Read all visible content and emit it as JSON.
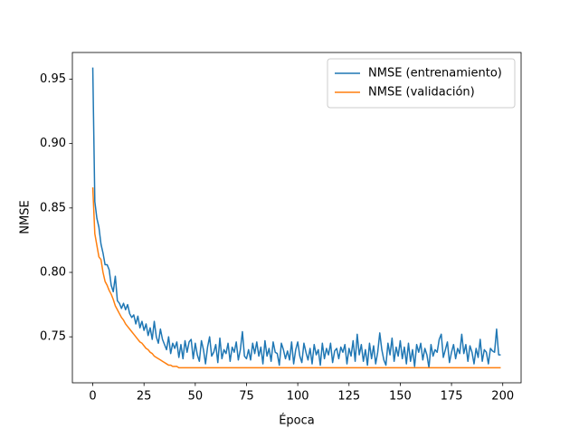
{
  "chart_data": {
    "type": "line",
    "xlabel": "Época",
    "ylabel": "NMSE",
    "xlim": [
      -9.95,
      208.95
    ],
    "ylim": [
      0.7143,
      0.9707
    ],
    "xticks": [
      0,
      25,
      50,
      75,
      100,
      125,
      150,
      175,
      200
    ],
    "yticks": [
      0.75,
      {
        "value": 0.8,
        "label": "0.80"
      },
      0.85,
      {
        "value": 0.9,
        "label": "0.90"
      },
      0.95
    ],
    "legend": "upper right",
    "x": [
      0,
      1,
      2,
      3,
      4,
      5,
      6,
      7,
      8,
      9,
      10,
      11,
      12,
      13,
      14,
      15,
      16,
      17,
      18,
      19,
      20,
      21,
      22,
      23,
      24,
      25,
      26,
      27,
      28,
      29,
      30,
      31,
      32,
      33,
      34,
      35,
      36,
      37,
      38,
      39,
      40,
      41,
      42,
      43,
      44,
      45,
      46,
      47,
      48,
      49,
      50,
      51,
      52,
      53,
      54,
      55,
      56,
      57,
      58,
      59,
      60,
      61,
      62,
      63,
      64,
      65,
      66,
      67,
      68,
      69,
      70,
      71,
      72,
      73,
      74,
      75,
      76,
      77,
      78,
      79,
      80,
      81,
      82,
      83,
      84,
      85,
      86,
      87,
      88,
      89,
      90,
      91,
      92,
      93,
      94,
      95,
      96,
      97,
      98,
      99,
      100,
      101,
      102,
      103,
      104,
      105,
      106,
      107,
      108,
      109,
      110,
      111,
      112,
      113,
      114,
      115,
      116,
      117,
      118,
      119,
      120,
      121,
      122,
      123,
      124,
      125,
      126,
      127,
      128,
      129,
      130,
      131,
      132,
      133,
      134,
      135,
      136,
      137,
      138,
      139,
      140,
      141,
      142,
      143,
      144,
      145,
      146,
      147,
      148,
      149,
      150,
      151,
      152,
      153,
      154,
      155,
      156,
      157,
      158,
      159,
      160,
      161,
      162,
      163,
      164,
      165,
      166,
      167,
      168,
      169,
      170,
      171,
      172,
      173,
      174,
      175,
      176,
      177,
      178,
      179,
      180,
      181,
      182,
      183,
      184,
      185,
      186,
      187,
      188,
      189,
      190,
      191,
      192,
      193,
      194,
      195,
      196,
      197,
      198,
      199
    ],
    "series": [
      {
        "name": "NMSE (entrenamiento)",
        "color": "#1f77b4",
        "values": [
          0.959,
          0.855,
          0.842,
          0.835,
          0.822,
          0.815,
          0.806,
          0.806,
          0.802,
          0.79,
          0.785,
          0.797,
          0.778,
          0.776,
          0.772,
          0.776,
          0.771,
          0.775,
          0.768,
          0.765,
          0.767,
          0.76,
          0.766,
          0.757,
          0.762,
          0.755,
          0.76,
          0.751,
          0.757,
          0.748,
          0.762,
          0.75,
          0.745,
          0.756,
          0.748,
          0.744,
          0.74,
          0.75,
          0.737,
          0.745,
          0.741,
          0.746,
          0.734,
          0.744,
          0.733,
          0.747,
          0.738,
          0.746,
          0.748,
          0.733,
          0.745,
          0.736,
          0.731,
          0.747,
          0.74,
          0.729,
          0.742,
          0.75,
          0.735,
          0.738,
          0.744,
          0.73,
          0.749,
          0.733,
          0.74,
          0.737,
          0.745,
          0.731,
          0.742,
          0.738,
          0.746,
          0.732,
          0.74,
          0.754,
          0.735,
          0.733,
          0.74,
          0.732,
          0.745,
          0.737,
          0.746,
          0.735,
          0.742,
          0.729,
          0.747,
          0.735,
          0.741,
          0.731,
          0.746,
          0.738,
          0.737,
          0.728,
          0.745,
          0.74,
          0.733,
          0.739,
          0.732,
          0.746,
          0.729,
          0.74,
          0.746,
          0.735,
          0.73,
          0.745,
          0.738,
          0.732,
          0.741,
          0.729,
          0.744,
          0.736,
          0.74,
          0.728,
          0.745,
          0.733,
          0.741,
          0.736,
          0.745,
          0.73,
          0.739,
          0.741,
          0.733,
          0.742,
          0.738,
          0.744,
          0.729,
          0.741,
          0.735,
          0.747,
          0.731,
          0.752,
          0.736,
          0.744,
          0.731,
          0.74,
          0.728,
          0.745,
          0.733,
          0.743,
          0.729,
          0.738,
          0.753,
          0.74,
          0.732,
          0.728,
          0.745,
          0.736,
          0.749,
          0.731,
          0.742,
          0.735,
          0.747,
          0.733,
          0.742,
          0.729,
          0.745,
          0.731,
          0.74,
          0.727,
          0.744,
          0.738,
          0.745,
          0.732,
          0.741,
          0.736,
          0.726,
          0.744,
          0.735,
          0.74,
          0.738,
          0.748,
          0.752,
          0.734,
          0.74,
          0.746,
          0.73,
          0.738,
          0.744,
          0.733,
          0.741,
          0.737,
          0.752,
          0.737,
          0.744,
          0.731,
          0.743,
          0.738,
          0.729,
          0.741,
          0.734,
          0.748,
          0.731,
          0.74,
          0.738,
          0.729,
          0.741,
          0.739,
          0.738,
          0.756,
          0.736,
          0.736
        ]
      },
      {
        "name": "NMSE (validación)",
        "color": "#ff7f0e",
        "values": [
          0.866,
          0.83,
          0.821,
          0.812,
          0.81,
          0.8,
          0.793,
          0.79,
          0.786,
          0.783,
          0.779,
          0.774,
          0.771,
          0.768,
          0.765,
          0.763,
          0.76,
          0.758,
          0.756,
          0.754,
          0.752,
          0.75,
          0.748,
          0.746,
          0.745,
          0.743,
          0.741,
          0.74,
          0.738,
          0.737,
          0.735,
          0.734,
          0.733,
          0.732,
          0.731,
          0.73,
          0.729,
          0.728,
          0.728,
          0.727,
          0.727,
          0.727,
          0.726,
          0.726,
          0.726,
          0.726,
          0.726,
          0.726,
          0.726,
          0.726,
          0.726,
          0.726,
          0.726,
          0.726,
          0.726,
          0.726,
          0.726,
          0.726,
          0.726,
          0.726,
          0.726,
          0.726,
          0.726,
          0.726,
          0.726,
          0.726,
          0.726,
          0.726,
          0.726,
          0.726,
          0.726,
          0.726,
          0.726,
          0.726,
          0.726,
          0.726,
          0.726,
          0.726,
          0.726,
          0.726,
          0.726,
          0.726,
          0.726,
          0.726,
          0.726,
          0.726,
          0.726,
          0.726,
          0.726,
          0.726,
          0.726,
          0.726,
          0.726,
          0.726,
          0.726,
          0.726,
          0.726,
          0.726,
          0.726,
          0.726,
          0.726,
          0.726,
          0.726,
          0.726,
          0.726,
          0.726,
          0.726,
          0.726,
          0.726,
          0.726,
          0.726,
          0.726,
          0.726,
          0.726,
          0.726,
          0.726,
          0.726,
          0.726,
          0.726,
          0.726,
          0.726,
          0.726,
          0.726,
          0.726,
          0.726,
          0.726,
          0.726,
          0.726,
          0.726,
          0.726,
          0.726,
          0.726,
          0.726,
          0.726,
          0.726,
          0.726,
          0.726,
          0.726,
          0.726,
          0.726,
          0.726,
          0.726,
          0.726,
          0.726,
          0.726,
          0.726,
          0.726,
          0.726,
          0.726,
          0.726,
          0.726,
          0.726,
          0.726,
          0.726,
          0.726,
          0.726,
          0.726,
          0.726,
          0.726,
          0.726,
          0.726,
          0.726,
          0.726,
          0.726,
          0.726,
          0.726,
          0.726,
          0.726,
          0.726,
          0.726,
          0.726,
          0.726,
          0.726,
          0.726,
          0.726,
          0.726,
          0.726,
          0.726,
          0.726,
          0.726,
          0.726,
          0.726,
          0.726,
          0.726,
          0.726,
          0.726,
          0.726,
          0.726,
          0.726,
          0.726,
          0.726,
          0.726,
          0.726,
          0.726,
          0.726,
          0.726,
          0.726,
          0.726,
          0.726,
          0.726
        ]
      }
    ]
  }
}
